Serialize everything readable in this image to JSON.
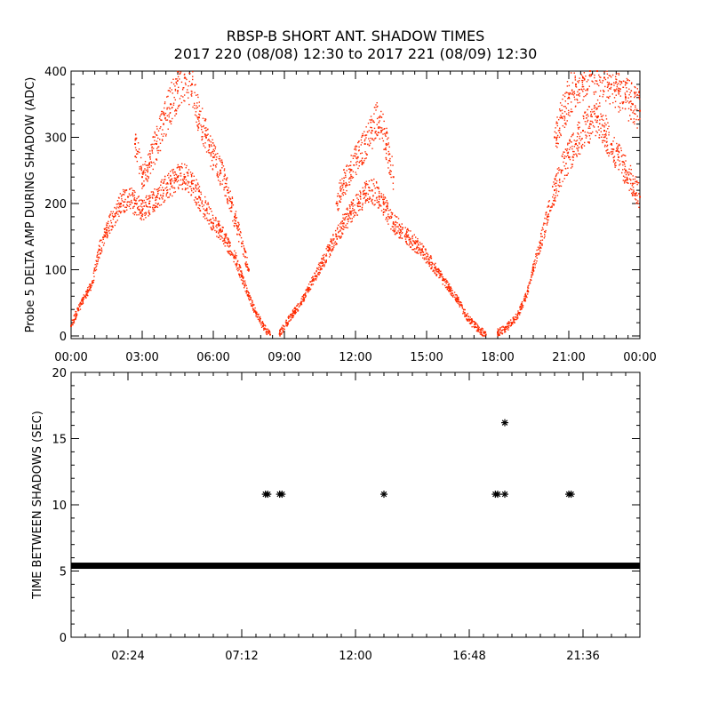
{
  "title": "RBSP-B SHORT ANT. SHADOW TIMES",
  "subtitle": "2017 220 (08/08) 12:30 to 2017 221 (08/09) 12:30",
  "colors": {
    "series_top": "#ff2a00",
    "series_bottom": "#000000",
    "axes": "#000000",
    "background": "#ffffff"
  },
  "chart_data": [
    {
      "type": "scatter",
      "ylabel": "Probe 5 DELTA AMP DURING SHADOW (ADC)",
      "xlabel": "",
      "x_unit": "hours",
      "xlim": [
        0,
        24
      ],
      "ylim": [
        0,
        400
      ],
      "x_ticks": [
        0,
        3,
        6,
        9,
        12,
        15,
        18,
        21,
        24
      ],
      "x_tick_labels": [
        "00:00",
        "03:00",
        "06:00",
        "09:00",
        "12:00",
        "15:00",
        "18:00",
        "21:00",
        "00:00"
      ],
      "y_ticks": [
        0,
        100,
        200,
        300,
        400
      ],
      "y_tick_labels": [
        "0",
        "100",
        "200",
        "300",
        "400"
      ],
      "marker": "dot",
      "series": [
        {
          "x": [
            0.0,
            0.3,
            0.6,
            0.9,
            1.2,
            1.5,
            1.8,
            2.1,
            2.4,
            2.7,
            3.0,
            3.3,
            3.6,
            3.9,
            4.2,
            4.5,
            4.8,
            5.1,
            5.4,
            5.7,
            6.0,
            6.3,
            6.6,
            6.9,
            7.2,
            7.5,
            7.8,
            8.1,
            8.4
          ],
          "y": [
            15,
            40,
            60,
            80,
            130,
            160,
            180,
            200,
            210,
            200,
            190,
            200,
            210,
            220,
            230,
            240,
            240,
            230,
            210,
            190,
            170,
            160,
            140,
            120,
            90,
            60,
            35,
            15,
            2
          ]
        },
        {
          "x": [
            2.7,
            3.0,
            3.3,
            3.6,
            3.9,
            4.2,
            4.5,
            4.8,
            5.1,
            5.4,
            5.7,
            6.0,
            6.3,
            6.6,
            6.9,
            7.2,
            7.5
          ],
          "y": [
            290,
            240,
            260,
            290,
            320,
            350,
            370,
            390,
            380,
            330,
            300,
            270,
            250,
            220,
            180,
            140,
            100
          ]
        },
        {
          "x": [
            8.8,
            9.1,
            9.4,
            9.7,
            10.0,
            10.3,
            10.6,
            10.9,
            11.2,
            11.5,
            11.8,
            12.1,
            12.4,
            12.7,
            13.0,
            13.3,
            13.6,
            13.9,
            14.2,
            14.5,
            14.8,
            15.1,
            15.4,
            15.7,
            16.0,
            16.3,
            16.6,
            16.9,
            17.2,
            17.5
          ],
          "y": [
            3,
            20,
            35,
            50,
            70,
            90,
            110,
            130,
            150,
            170,
            185,
            200,
            215,
            220,
            210,
            190,
            170,
            160,
            150,
            140,
            130,
            115,
            100,
            85,
            70,
            55,
            35,
            20,
            10,
            2
          ]
        },
        {
          "x": [
            11.2,
            11.5,
            11.8,
            12.1,
            12.4,
            12.7,
            13.0,
            13.3,
            13.6
          ],
          "y": [
            200,
            230,
            250,
            270,
            290,
            310,
            330,
            290,
            240
          ]
        },
        {
          "x": [
            18.0,
            18.3,
            18.6,
            18.9,
            19.2,
            19.5,
            19.8,
            20.1,
            20.4,
            20.7,
            21.0,
            21.3,
            21.6,
            21.9,
            22.2,
            22.5,
            22.8,
            23.1,
            23.4,
            23.7,
            24.0
          ],
          "y": [
            5,
            10,
            20,
            35,
            60,
            100,
            140,
            180,
            220,
            250,
            270,
            290,
            310,
            320,
            330,
            310,
            290,
            270,
            250,
            230,
            210
          ]
        },
        {
          "x": [
            20.4,
            20.7,
            21.0,
            21.3,
            21.6,
            21.9,
            22.2,
            22.5,
            22.8,
            23.1,
            23.4,
            23.7,
            24.0
          ],
          "y": [
            300,
            330,
            360,
            380,
            390,
            400,
            400,
            390,
            380,
            370,
            360,
            350,
            340
          ]
        }
      ]
    },
    {
      "type": "scatter",
      "ylabel": "TIME BETWEEN SHADOWS (SEC)",
      "xlabel": "",
      "x_unit": "hours",
      "xlim": [
        0,
        24
      ],
      "ylim": [
        0,
        20
      ],
      "x_ticks": [
        2.4,
        7.2,
        12.0,
        16.8,
        21.6
      ],
      "x_tick_labels": [
        "02:24",
        "07:12",
        "12:00",
        "16:48",
        "21:36"
      ],
      "y_ticks": [
        0,
        5,
        10,
        15,
        20
      ],
      "y_tick_labels": [
        "0",
        "5",
        "10",
        "15",
        "20"
      ],
      "marker": "asterisk",
      "baseline": {
        "x_range": [
          0,
          24
        ],
        "y": 5.4
      },
      "series": [
        {
          "x": [
            8.2,
            8.3,
            8.8,
            8.9,
            13.2,
            17.9,
            18.0,
            18.3,
            18.3,
            21.0,
            21.1
          ],
          "y": [
            10.8,
            10.8,
            10.8,
            10.8,
            10.8,
            10.8,
            10.8,
            16.2,
            10.8,
            10.8,
            10.8
          ]
        }
      ]
    }
  ]
}
